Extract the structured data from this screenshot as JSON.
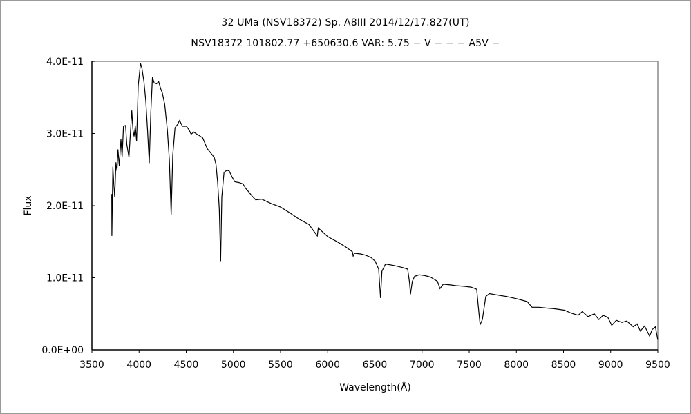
{
  "chart_data": {
    "type": "line",
    "title": "32 UMa (NSV18372)    Sp. A8III    2014/12/17.827(UT)",
    "subtitle": "NSV18372 101802.77 +650630.6 VAR: 5.75 − V − − − A5V −",
    "xlabel": "Wavelength(Å)",
    "ylabel": "Flux",
    "xlim": [
      3500,
      9500
    ],
    "ylim": [
      0,
      4e-11
    ],
    "xticks": [
      "3500",
      "4000",
      "4500",
      "5000",
      "5500",
      "6000",
      "6500",
      "7000",
      "7500",
      "8000",
      "8500",
      "9000",
      "9500"
    ],
    "yticks": [
      "0.0E+00",
      "1.0E-11",
      "2.0E-11",
      "3.0E-11",
      "4.0E-11"
    ],
    "grid": false,
    "line_color": "#000000",
    "series": [
      {
        "x": [
          3710,
          3712,
          3722,
          3732,
          3742,
          3755,
          3766,
          3776,
          3790,
          3808,
          3820,
          3835,
          3857,
          3870,
          3893,
          3910,
          3923,
          3935,
          3947,
          3960,
          3974,
          3991,
          4015,
          4030,
          4052,
          4071,
          4090,
          4108,
          4125,
          4142,
          4160,
          4186,
          4208,
          4230,
          4247,
          4272,
          4300,
          4321,
          4340,
          4357,
          4381,
          4405,
          4430,
          4460,
          4503,
          4530,
          4552,
          4580,
          4613,
          4640,
          4674,
          4700,
          4723,
          4760,
          4797,
          4816,
          4833,
          4850,
          4865,
          4877,
          4901,
          4930,
          4956,
          4985,
          5016,
          5060,
          5102,
          5130,
          5163,
          5200,
          5236,
          5300,
          5400,
          5500,
          5600,
          5700,
          5800,
          5890,
          5900,
          6000,
          6100,
          6189,
          6262,
          6270,
          6284,
          6350,
          6408,
          6460,
          6504,
          6540,
          6560,
          6575,
          6613,
          6700,
          6800,
          6848,
          6868,
          6877,
          6897,
          6921,
          6970,
          7030,
          7090,
          7164,
          7190,
          7225,
          7300,
          7360,
          7450,
          7520,
          7580,
          7594,
          7616,
          7640,
          7676,
          7715,
          7800,
          7896,
          8000,
          8115,
          8167,
          8240,
          8313,
          8400,
          8509,
          8580,
          8655,
          8700,
          8760,
          8826,
          8875,
          8920,
          8970,
          9011,
          9060,
          9120,
          9170,
          9240,
          9280,
          9315,
          9360,
          9413,
          9440,
          9474,
          9499
        ],
        "y": [
          2.16e-11,
          1.58e-11,
          2.54e-11,
          2.3e-11,
          2.12e-11,
          2.6e-11,
          2.48e-11,
          2.78e-11,
          2.55e-11,
          2.92e-11,
          2.67e-11,
          3.1e-11,
          3.11e-11,
          2.85e-11,
          2.67e-11,
          3.05e-11,
          3.32e-11,
          3.05e-11,
          2.96e-11,
          3.1e-11,
          2.89e-11,
          3.66e-11,
          3.97e-11,
          3.91e-11,
          3.72e-11,
          3.46e-11,
          3.05e-11,
          2.59e-11,
          3.3e-11,
          3.78e-11,
          3.7e-11,
          3.69e-11,
          3.72e-11,
          3.62e-11,
          3.56e-11,
          3.4e-11,
          3.05e-11,
          2.63e-11,
          1.87e-11,
          2.7e-11,
          3.08e-11,
          3.12e-11,
          3.18e-11,
          3.1e-11,
          3.1e-11,
          3.05e-11,
          2.99e-11,
          3.02e-11,
          2.99e-11,
          2.97e-11,
          2.94e-11,
          2.86e-11,
          2.79e-11,
          2.73e-11,
          2.67e-11,
          2.57e-11,
          2.32e-11,
          1.96e-11,
          1.23e-11,
          2.12e-11,
          2.46e-11,
          2.49e-11,
          2.48e-11,
          2.4e-11,
          2.33e-11,
          2.32e-11,
          2.3e-11,
          2.24e-11,
          2.19e-11,
          2.13e-11,
          2.08e-11,
          2.09e-11,
          2.03e-11,
          1.98e-11,
          1.9e-11,
          1.81e-11,
          1.74e-11,
          1.58e-11,
          1.69e-11,
          1.57e-11,
          1.5e-11,
          1.43e-11,
          1.36e-11,
          1.3e-11,
          1.34e-11,
          1.33e-11,
          1.31e-11,
          1.28e-11,
          1.23e-11,
          1.12e-11,
          7.2e-12,
          1.09e-11,
          1.19e-11,
          1.17e-11,
          1.14e-11,
          1.12e-11,
          9.3e-12,
          7.7e-12,
          9.5e-12,
          1.02e-11,
          1.04e-11,
          1.03e-11,
          1.01e-11,
          9.5e-12,
          8.5e-12,
          9.1e-12,
          9e-12,
          8.9e-12,
          8.8e-12,
          8.7e-12,
          8.4e-12,
          6.4e-12,
          3.5e-12,
          4.2e-12,
          7.4e-12,
          7.8e-12,
          7.6e-12,
          7.4e-12,
          7.1e-12,
          6.7e-12,
          5.9e-12,
          5.9e-12,
          5.8e-12,
          5.7e-12,
          5.5e-12,
          5.1e-12,
          4.8e-12,
          5.3e-12,
          4.6e-12,
          5e-12,
          4.2e-12,
          4.8e-12,
          4.5e-12,
          3.4e-12,
          4.1e-12,
          3.8e-12,
          4e-12,
          3.2e-12,
          3.6e-12,
          2.6e-12,
          3.3e-12,
          1.9e-12,
          2.8e-12,
          3.2e-12,
          1.4e-12
        ]
      }
    ]
  }
}
